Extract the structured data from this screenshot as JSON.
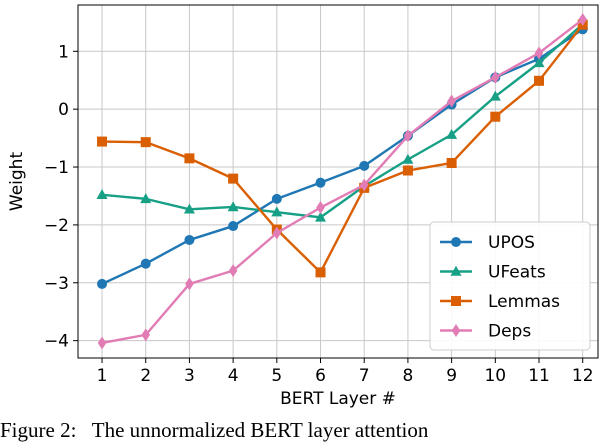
{
  "caption": "Figure 2:   The unnormalized BERT layer attention",
  "chart_data": {
    "type": "line",
    "xlabel": "BERT Layer #",
    "ylabel": "Weight",
    "x": [
      1,
      2,
      3,
      4,
      5,
      6,
      7,
      8,
      9,
      10,
      11,
      12
    ],
    "xticks": [
      "1",
      "2",
      "3",
      "4",
      "5",
      "6",
      "7",
      "8",
      "9",
      "10",
      "11",
      "12"
    ],
    "xlim": [
      0.45,
      12.35
    ],
    "ylim": [
      -4.3,
      1.8
    ],
    "yticks": [
      1,
      0,
      -1,
      -2,
      -3,
      -4
    ],
    "ytick_labels": [
      "1",
      "0",
      "−1",
      "−2",
      "−3",
      "−4"
    ],
    "grid": true,
    "legend_position": "lower-right",
    "series": [
      {
        "name": "UPOS",
        "color": "#1f77b4",
        "marker": "circle",
        "values": [
          -3.02,
          -2.67,
          -2.26,
          -2.02,
          -1.55,
          -1.27,
          -0.98,
          -0.46,
          0.08,
          0.55,
          0.87,
          1.38
        ]
      },
      {
        "name": "UFeats",
        "color": "#17a085",
        "marker": "triangle",
        "values": [
          -1.48,
          -1.55,
          -1.73,
          -1.69,
          -1.78,
          -1.87,
          -1.33,
          -0.87,
          -0.44,
          0.22,
          0.8,
          1.47
        ]
      },
      {
        "name": "Lemmas",
        "color": "#d95f02",
        "marker": "square",
        "values": [
          -0.56,
          -0.57,
          -0.85,
          -1.2,
          -2.08,
          -2.82,
          -1.36,
          -1.06,
          -0.93,
          -0.13,
          0.49,
          1.46
        ]
      },
      {
        "name": "Deps",
        "color": "#e17cb5",
        "marker": "diamond",
        "values": [
          -4.04,
          -3.9,
          -3.02,
          -2.79,
          -2.14,
          -1.7,
          -1.31,
          -0.46,
          0.14,
          0.55,
          0.97,
          1.55
        ]
      }
    ]
  }
}
